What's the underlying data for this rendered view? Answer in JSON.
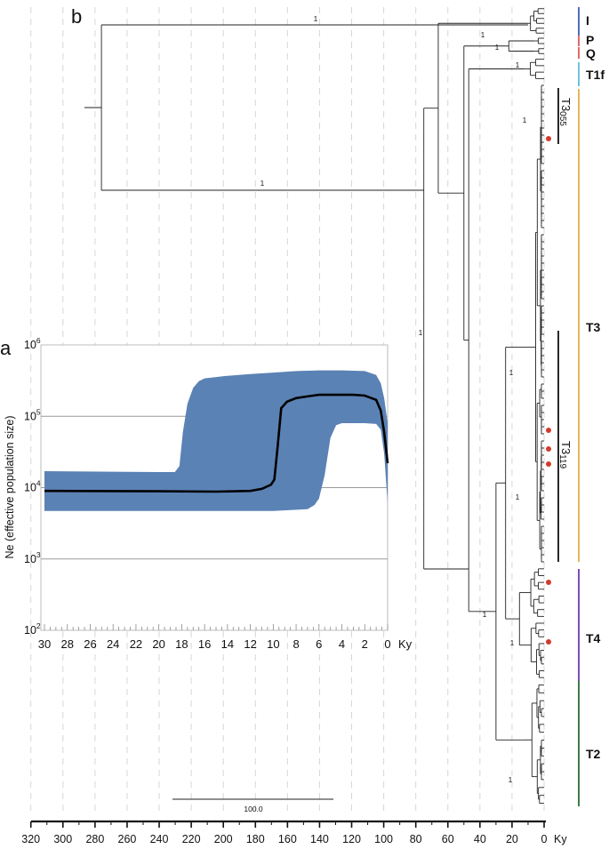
{
  "panels": {
    "a_label": "a",
    "b_label": "b"
  },
  "chart_data": [
    {
      "panel": "a",
      "type": "area",
      "ylabel": "Ne (effective population size)",
      "x_unit": "Ky",
      "y_scale": "log",
      "ylim": [
        100,
        1000000
      ],
      "y_ticks": [
        {
          "base": "10",
          "exp": "2"
        },
        {
          "base": "10",
          "exp": "3"
        },
        {
          "base": "10",
          "exp": "4"
        },
        {
          "base": "10",
          "exp": "5"
        },
        {
          "base": "10",
          "exp": "6"
        }
      ],
      "xlim": [
        30,
        0
      ],
      "x_ticks": [
        "30",
        "28",
        "26",
        "24",
        "22",
        "20",
        "18",
        "16",
        "14",
        "12",
        "10",
        "8",
        "6",
        "4",
        "2",
        "0"
      ],
      "grid_y": true,
      "series": [
        {
          "role": "median",
          "color": "#000000",
          "x": [
            30,
            20,
            15,
            12,
            11,
            10.2,
            9.9,
            9.6,
            9.3,
            8.8,
            8,
            7,
            6,
            5,
            4,
            3,
            2,
            1,
            0.6,
            0.3,
            0
          ],
          "y": [
            9000,
            8900,
            8800,
            9000,
            9600,
            11000,
            13000,
            40000,
            130000,
            160000,
            180000,
            190000,
            200000,
            200000,
            200000,
            200000,
            195000,
            170000,
            120000,
            60000,
            22000
          ]
        },
        {
          "role": "upper_bound",
          "color": "#5b82b5",
          "x": [
            30,
            20,
            18.6,
            18.2,
            17.9,
            17.5,
            17,
            16.5,
            16,
            14,
            12,
            10,
            8,
            6,
            5,
            4,
            2,
            1,
            0.6,
            0.3,
            0
          ],
          "y": [
            17000,
            16500,
            16500,
            20000,
            60000,
            150000,
            250000,
            310000,
            340000,
            370000,
            390000,
            410000,
            430000,
            440000,
            440000,
            440000,
            430000,
            380000,
            290000,
            180000,
            80000
          ]
        },
        {
          "role": "lower_bound",
          "color": "#5b82b5",
          "x": [
            30,
            10,
            7,
            6.4,
            6,
            5.5,
            5,
            4.5,
            4,
            2,
            1,
            0.6,
            0.3,
            0
          ],
          "y": [
            4700,
            4700,
            5000,
            5700,
            7000,
            15000,
            50000,
            75000,
            80000,
            80000,
            78000,
            65000,
            30000,
            6000
          ]
        }
      ]
    },
    {
      "panel": "b",
      "type": "tree",
      "x_unit": "Ky",
      "xlim": [
        320,
        0
      ],
      "x_ticks": [
        "320",
        "300",
        "280",
        "260",
        "240",
        "220",
        "200",
        "180",
        "160",
        "140",
        "120",
        "100",
        "80",
        "60",
        "40",
        "20",
        "0"
      ],
      "scale_bar_label": "100.0",
      "internal_nodes": [
        {
          "id": "root",
          "age": 276,
          "support": "1"
        },
        {
          "id": "n2",
          "age": 75,
          "support": "1"
        },
        {
          "id": "n3",
          "age": 66,
          "support": "1"
        },
        {
          "id": "n4",
          "age": 50,
          "support": "1"
        },
        {
          "id": "n5",
          "age": 47,
          "support": "1"
        },
        {
          "id": "n_t1f",
          "age": 12,
          "support": "1"
        },
        {
          "id": "n_t3",
          "age": 10,
          "support": "1"
        },
        {
          "id": "n_t4",
          "age": 20,
          "support": "1"
        },
        {
          "id": "n_t2",
          "age": 13,
          "support": "1"
        }
      ],
      "clades": [
        {
          "name": "I",
          "color": "#4f6fb8",
          "tips": 6
        },
        {
          "name": "P",
          "color": "#e06a6a",
          "tips": 2
        },
        {
          "name": "Q",
          "color": "#e06a6a",
          "tips": 2
        },
        {
          "name": "T1f",
          "color": "#6fc4dc",
          "tips": 4
        },
        {
          "name": "T3",
          "color": "#e2b85a",
          "tips": 68
        },
        {
          "name": "T4",
          "color": "#7b4fb3",
          "tips": 17
        },
        {
          "name": "T2",
          "color": "#3f7a47",
          "tips": 16
        }
      ],
      "subclades": [
        {
          "name": "T3055",
          "base": "T3",
          "sub": "055"
        },
        {
          "name": "T3119",
          "base": "T3",
          "sub": "119"
        }
      ],
      "marker_color": "#d33a2c",
      "markers_per_clade": {
        "T3": 4,
        "T4": 2
      }
    }
  ]
}
